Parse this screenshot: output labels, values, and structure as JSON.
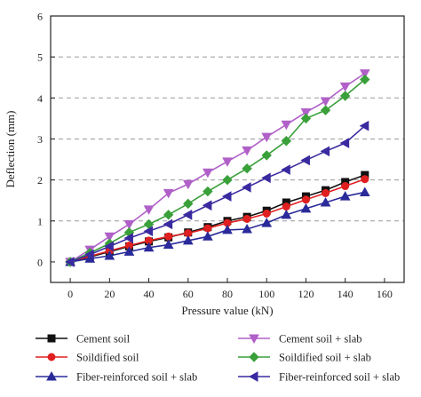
{
  "chart_data": {
    "type": "line",
    "xlabel": "Pressure value (kN)",
    "ylabel": "Deflection (mm)",
    "xlim": [
      -10,
      170
    ],
    "ylim": [
      -0.5,
      6
    ],
    "xticks": [
      0,
      20,
      40,
      60,
      80,
      100,
      120,
      140,
      160
    ],
    "yticks": [
      0,
      1,
      2,
      3,
      4,
      5,
      6
    ],
    "grid": "horizontal dashed",
    "legend_position": "bottom",
    "series": [
      {
        "name": "Cement soil",
        "color": "#111111",
        "marker": "square",
        "x": [
          0,
          10,
          20,
          30,
          40,
          50,
          60,
          70,
          80,
          90,
          100,
          110,
          120,
          130,
          140,
          150
        ],
        "y": [
          0,
          0.12,
          0.25,
          0.38,
          0.5,
          0.6,
          0.72,
          0.85,
          1.0,
          1.1,
          1.25,
          1.45,
          1.6,
          1.75,
          1.95,
          2.12
        ]
      },
      {
        "name": "Soildified soil",
        "color": "#e02020",
        "marker": "circle",
        "x": [
          0,
          10,
          20,
          30,
          40,
          50,
          60,
          70,
          80,
          90,
          100,
          110,
          120,
          130,
          140,
          150
        ],
        "y": [
          0,
          0.14,
          0.27,
          0.4,
          0.52,
          0.62,
          0.7,
          0.82,
          0.95,
          1.05,
          1.18,
          1.35,
          1.52,
          1.68,
          1.85,
          2.02
        ]
      },
      {
        "name": "Fiber-reinforced soil + slab",
        "color": "#2a2a9a",
        "marker": "triangle-up",
        "x": [
          0,
          10,
          20,
          30,
          40,
          50,
          60,
          70,
          80,
          90,
          100,
          110,
          120,
          130,
          140,
          150
        ],
        "y": [
          0,
          0.08,
          0.15,
          0.25,
          0.35,
          0.42,
          0.52,
          0.62,
          0.78,
          0.8,
          0.95,
          1.15,
          1.3,
          1.45,
          1.6,
          1.7
        ]
      },
      {
        "name": "Cement soil + slab",
        "color": "#b060c8",
        "marker": "triangle-down",
        "x": [
          0,
          10,
          20,
          30,
          40,
          50,
          60,
          70,
          80,
          90,
          100,
          110,
          120,
          130,
          140,
          150
        ],
        "y": [
          0,
          0.3,
          0.62,
          0.92,
          1.28,
          1.68,
          1.9,
          2.18,
          2.45,
          2.72,
          3.05,
          3.35,
          3.65,
          3.92,
          4.28,
          4.6
        ]
      },
      {
        "name": "Soildified soil + slab",
        "color": "#3aa03a",
        "marker": "diamond",
        "x": [
          0,
          10,
          20,
          30,
          40,
          50,
          60,
          70,
          80,
          90,
          100,
          110,
          120,
          130,
          140,
          150
        ],
        "y": [
          0,
          0.22,
          0.45,
          0.72,
          0.92,
          1.15,
          1.42,
          1.72,
          2.0,
          2.28,
          2.6,
          2.95,
          3.5,
          3.7,
          4.05,
          4.45
        ]
      },
      {
        "name": "Fiber-reinforced soil + slab",
        "color": "#3a2aa0",
        "marker": "triangle-left",
        "x": [
          0,
          10,
          20,
          30,
          40,
          50,
          60,
          70,
          80,
          90,
          100,
          110,
          120,
          130,
          140,
          150
        ],
        "y": [
          0,
          0.18,
          0.38,
          0.58,
          0.75,
          0.92,
          1.15,
          1.38,
          1.6,
          1.82,
          2.05,
          2.25,
          2.48,
          2.7,
          2.9,
          3.32
        ]
      }
    ]
  }
}
